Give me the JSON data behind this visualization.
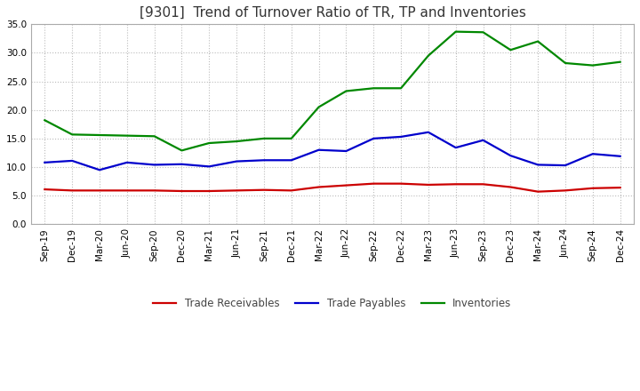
{
  "title": "[9301]  Trend of Turnover Ratio of TR, TP and Inventories",
  "ylim": [
    0.0,
    35.0
  ],
  "yticks": [
    0.0,
    5.0,
    10.0,
    15.0,
    20.0,
    25.0,
    30.0,
    35.0
  ],
  "x_labels": [
    "Sep-19",
    "Dec-19",
    "Mar-20",
    "Jun-20",
    "Sep-20",
    "Dec-20",
    "Mar-21",
    "Jun-21",
    "Sep-21",
    "Dec-21",
    "Mar-22",
    "Jun-22",
    "Sep-22",
    "Dec-22",
    "Mar-23",
    "Jun-23",
    "Sep-23",
    "Dec-23",
    "Mar-24",
    "Jun-24",
    "Sep-24",
    "Dec-24"
  ],
  "trade_receivables": [
    6.1,
    5.9,
    5.9,
    5.9,
    5.9,
    5.8,
    5.8,
    5.9,
    6.0,
    5.9,
    6.5,
    6.8,
    7.1,
    7.1,
    6.9,
    7.0,
    7.0,
    6.5,
    5.7,
    5.9,
    6.3,
    6.4
  ],
  "trade_payables": [
    10.8,
    11.1,
    9.5,
    10.8,
    10.4,
    10.5,
    10.1,
    11.0,
    11.2,
    11.2,
    13.0,
    12.8,
    15.0,
    15.3,
    16.1,
    13.4,
    14.7,
    12.0,
    10.4,
    10.3,
    12.3,
    11.9
  ],
  "inventories": [
    18.2,
    15.7,
    15.6,
    15.5,
    15.4,
    12.9,
    14.2,
    14.5,
    15.0,
    15.0,
    20.5,
    23.3,
    23.8,
    23.8,
    29.5,
    33.7,
    33.6,
    30.5,
    32.0,
    28.2,
    27.8,
    28.4
  ],
  "tr_color": "#cc0000",
  "tp_color": "#0000cc",
  "inv_color": "#008800",
  "legend_labels": [
    "Trade Receivables",
    "Trade Payables",
    "Inventories"
  ],
  "bg_color": "#ffffff",
  "plot_bg_color": "#ffffff",
  "grid_color": "#bbbbbb",
  "title_fontsize": 11,
  "tick_fontsize": 7.5,
  "legend_fontsize": 8.5,
  "line_width": 1.6
}
